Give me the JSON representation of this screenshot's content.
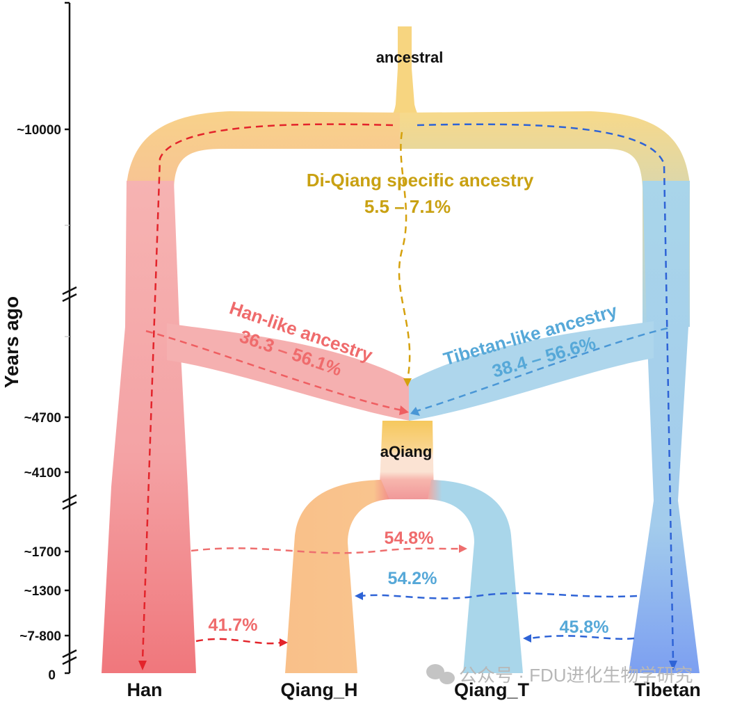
{
  "colors": {
    "han": "#f0777c",
    "han_light": "#f6b3b2",
    "tibetan": "#a9d5ea",
    "tibetan_deep": "#7c9ff1",
    "ancestral": "#f7d580",
    "qiang_h": "#f9c089",
    "qiang_t": "#a9d6ea",
    "arrow_red": "#e3242b",
    "arrow_blue": "#2e63d6",
    "arrow_gold": "#d5a10d",
    "text_gold": "#c9a112",
    "text_red": "#ef6b6c",
    "text_blue": "#56a8d8"
  },
  "y_axis": {
    "label": "Years ago",
    "ticks": [
      "~10000",
      "~4700",
      "~4100",
      "~1700",
      "~1300",
      "~7-800",
      "0"
    ]
  },
  "nodes": {
    "ancestral": "ancestral",
    "aqiang": "aQiang"
  },
  "populations": [
    "Han",
    "Qiang_H",
    "Qiang_T",
    "Tibetan"
  ],
  "annotations": {
    "diqiang_title": "Di-Qiang specific ancestry",
    "diqiang_range": "5.5 – 7.1%",
    "hanlike_title": "Han-like ancestry",
    "hanlike_range": "36.3 – 56.1%",
    "tibetanlike_title": "Tibetan-like ancestry",
    "tibetanlike_range": "38.4 – 56.6%"
  },
  "gene_flows": {
    "han_to_qiang_t": "54.8%",
    "tibetan_to_qiang_h": "54.2%",
    "han_to_qiang_h": "41.7%",
    "tibetan_to_qiang_t": "45.8%"
  },
  "watermark": "公众号 · FDU进化生物学研究"
}
